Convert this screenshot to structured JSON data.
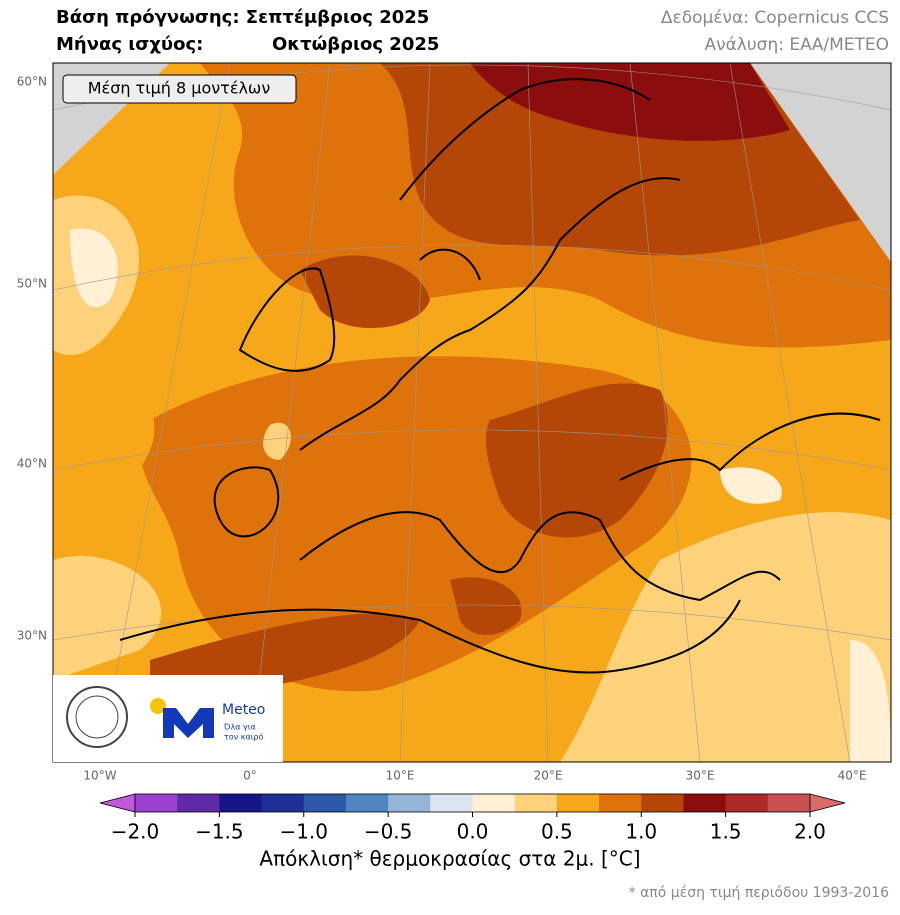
{
  "header": {
    "forecast_base": "Βάση πρόγνωσης: Σεπτέμβριος 2025",
    "valid_label": "Μήνας ισχύος:",
    "valid_month": "Οκτώβριος 2025",
    "data_source": "Δεδομένα: Copernicus CCS",
    "analysis": "Ανάλυση: ΕΑΑ/METEO"
  },
  "map": {
    "inset_label": "Μέση τιμή 8 μοντέλων",
    "lat_labels": [
      "60°N",
      "50°N",
      "40°N",
      "30°N"
    ],
    "lon_labels": [
      "10°W",
      "0°",
      "10°E",
      "20°E",
      "30°E",
      "40°E"
    ]
  },
  "logo": {
    "brand": "Meteo",
    "tagline_1": "Όλα για",
    "tagline_2": "τον καιρό"
  },
  "colorbar": {
    "lim": [
      -2,
      2
    ],
    "ticks": [
      {
        "value": -2,
        "label": "−2.0"
      },
      {
        "value": -1.5,
        "label": "−1.5"
      },
      {
        "value": -1,
        "label": "−1.0"
      },
      {
        "value": -0.5,
        "label": "−0.5"
      },
      {
        "value": 0,
        "label": "0.0"
      },
      {
        "value": 0.5,
        "label": "0.5"
      },
      {
        "value": 1,
        "label": "1.0"
      },
      {
        "value": 1.5,
        "label": "1.5"
      },
      {
        "value": 2,
        "label": "2.0"
      }
    ],
    "colors": [
      "#9b40cf",
      "#5e2aa6",
      "#16158a",
      "#1e2f98",
      "#2d58a8",
      "#4f86bf",
      "#95b5d6",
      "#dde6f0",
      "#fff0d6",
      "#fdd27a",
      "#f7a81a",
      "#de730b",
      "#b44708",
      "#8b0d0d",
      "#ae2a2a",
      "#c95050"
    ],
    "under_color": "#c05ad8",
    "over_color": "#d96a6a",
    "label": "Απόκλιση* θερμοκρασίας στα 2μ. [°C]",
    "footnote": "* από μέση τιμή περιόδου 1993-2016"
  }
}
